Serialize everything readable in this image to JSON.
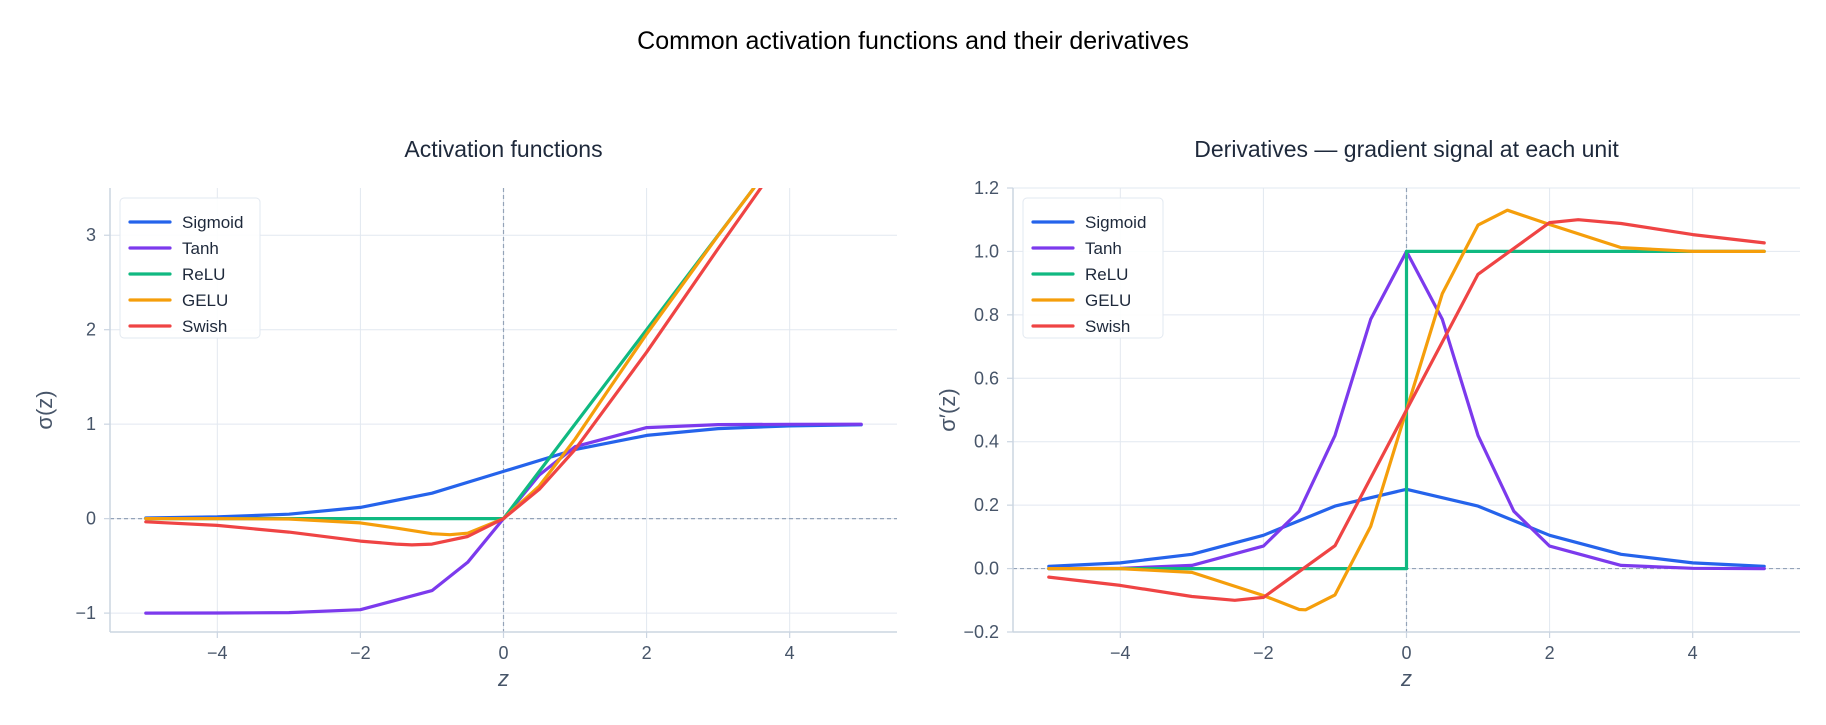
{
  "suptitle": "Common activation functions and their derivatives",
  "colors": {
    "Sigmoid": "#2563eb",
    "Tanh": "#7c3aed",
    "ReLU": "#10b981",
    "GELU": "#f59e0b",
    "Swish": "#ef4444",
    "text": "#1e293b",
    "tick": "#475569",
    "grid": "#e2e8f0",
    "zero_line": "#94a3b8",
    "axis": "#cbd5e1"
  },
  "chart_data": [
    {
      "type": "line",
      "title": "Activation functions",
      "xlabel": "z",
      "ylabel": "σ(z)",
      "xlim": [
        -5.5,
        5.5
      ],
      "ylim": [
        -1.2,
        3.5
      ],
      "xticks": [
        -4,
        -2,
        0,
        2,
        4
      ],
      "xtick_labels": [
        "−4",
        "−2",
        "0",
        "2",
        "4"
      ],
      "yticks": [
        -1,
        0,
        1,
        2,
        3
      ],
      "ytick_labels": [
        "−1",
        "0",
        "1",
        "2",
        "3"
      ],
      "grid": true,
      "legend_position": "upper-left",
      "series": [
        {
          "name": "Sigmoid",
          "x": [
            -5,
            -4,
            -3,
            -2,
            -1,
            0,
            1,
            2,
            3,
            4,
            5
          ],
          "y": [
            0.007,
            0.018,
            0.047,
            0.119,
            0.269,
            0.5,
            0.731,
            0.881,
            0.953,
            0.982,
            0.993
          ]
        },
        {
          "name": "Tanh",
          "x": [
            -5,
            -4,
            -3,
            -2,
            -1,
            -0.5,
            0,
            0.5,
            1,
            2,
            3,
            4,
            5
          ],
          "y": [
            -1.0,
            -0.999,
            -0.995,
            -0.964,
            -0.762,
            -0.462,
            0.0,
            0.462,
            0.762,
            0.964,
            0.995,
            0.999,
            1.0
          ]
        },
        {
          "name": "ReLU",
          "x": [
            -5,
            0,
            3.5
          ],
          "y": [
            0,
            0,
            3.5
          ]
        },
        {
          "name": "GELU",
          "x": [
            -5,
            -4,
            -3,
            -2,
            -1.5,
            -1,
            -0.75,
            -0.5,
            0,
            0.5,
            1,
            1.5,
            2,
            3,
            3.5
          ],
          "y": [
            0.0,
            0.0,
            -0.004,
            -0.045,
            -0.1,
            -0.159,
            -0.17,
            -0.154,
            0.0,
            0.346,
            0.841,
            1.4,
            1.955,
            2.996,
            3.5
          ]
        },
        {
          "name": "Swish",
          "x": [
            -5,
            -4,
            -3,
            -2,
            -1.5,
            -1.28,
            -1,
            -0.5,
            0,
            0.5,
            1,
            2,
            3,
            3.6
          ],
          "y": [
            -0.033,
            -0.072,
            -0.142,
            -0.238,
            -0.27,
            -0.278,
            -0.269,
            -0.189,
            0.0,
            0.311,
            0.731,
            1.762,
            2.858,
            3.504
          ]
        }
      ]
    },
    {
      "type": "line",
      "title": "Derivatives — gradient signal at each unit",
      "xlabel": "z",
      "ylabel": "σ′(z)",
      "xlim": [
        -5.5,
        5.5
      ],
      "ylim": [
        -0.2,
        1.2
      ],
      "xticks": [
        -4,
        -2,
        0,
        2,
        4
      ],
      "xtick_labels": [
        "−4",
        "−2",
        "0",
        "2",
        "4"
      ],
      "yticks": [
        -0.2,
        0.0,
        0.2,
        0.4,
        0.6,
        0.8,
        1.0,
        1.2
      ],
      "ytick_labels": [
        "−0.2",
        "0.0",
        "0.2",
        "0.4",
        "0.6",
        "0.8",
        "1.0",
        "1.2"
      ],
      "grid": true,
      "legend_position": "upper-left",
      "series": [
        {
          "name": "Sigmoid",
          "x": [
            -5,
            -4,
            -3,
            -2,
            -1,
            0,
            1,
            2,
            3,
            4,
            5
          ],
          "y": [
            0.007,
            0.018,
            0.045,
            0.105,
            0.197,
            0.25,
            0.197,
            0.105,
            0.045,
            0.018,
            0.007
          ]
        },
        {
          "name": "Tanh",
          "x": [
            -5,
            -4,
            -3,
            -2,
            -1.5,
            -1,
            -0.5,
            0,
            0.5,
            1,
            1.5,
            2,
            3,
            4,
            5
          ],
          "y": [
            0.0,
            0.001,
            0.01,
            0.071,
            0.181,
            0.42,
            0.786,
            1.0,
            0.786,
            0.42,
            0.181,
            0.071,
            0.01,
            0.001,
            0.0
          ]
        },
        {
          "name": "ReLU",
          "x": [
            -5,
            0,
            0,
            5
          ],
          "y": [
            0,
            0,
            1,
            1
          ]
        },
        {
          "name": "GELU",
          "x": [
            -5,
            -4,
            -3,
            -2,
            -1.5,
            -1.41,
            -1,
            -0.5,
            0,
            0.5,
            1,
            1.41,
            2,
            3,
            4,
            5
          ],
          "y": [
            0.0,
            0.0,
            -0.012,
            -0.085,
            -0.129,
            -0.13,
            -0.083,
            0.133,
            0.5,
            0.867,
            1.083,
            1.13,
            1.085,
            1.012,
            1.0,
            1.0
          ]
        },
        {
          "name": "Swish",
          "x": [
            -5,
            -4,
            -3,
            -2.4,
            -2,
            -1,
            0,
            1,
            2,
            2.4,
            3,
            4,
            5
          ],
          "y": [
            -0.027,
            -0.053,
            -0.088,
            -0.1,
            -0.091,
            0.072,
            0.5,
            0.928,
            1.091,
            1.1,
            1.088,
            1.053,
            1.027
          ]
        }
      ]
    }
  ]
}
